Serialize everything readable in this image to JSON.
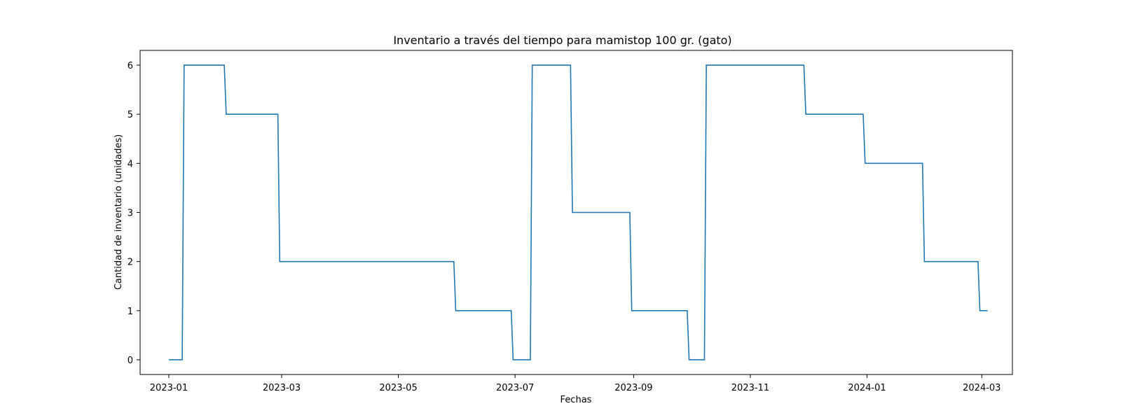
{
  "chart_data": {
    "type": "line",
    "title": "Inventario a través del tiempo para mamistop 100 gr. (gato)",
    "xlabel": "Fechas",
    "ylabel": "Cantidad de inventario (unidades)",
    "xlim": [
      "2022-12-17",
      "2024-03-17"
    ],
    "ylim": [
      -0.3,
      6.3
    ],
    "x_ticks": [
      "2023-01",
      "2023-03",
      "2023-05",
      "2023-07",
      "2023-09",
      "2023-11",
      "2024-01",
      "2024-03"
    ],
    "y_ticks": [
      0,
      1,
      2,
      3,
      4,
      5,
      6
    ],
    "grid": false,
    "color": "#1f77b4",
    "series": [
      {
        "x": [
          "2023-01-01",
          "2023-01-08",
          "2023-01-09",
          "2023-01-30",
          "2023-01-31",
          "2023-02-27",
          "2023-02-28",
          "2023-05-30",
          "2023-05-31",
          "2023-06-29",
          "2023-06-30",
          "2023-07-09",
          "2023-07-10",
          "2023-07-30",
          "2023-07-31",
          "2023-08-30",
          "2023-08-31",
          "2023-09-29",
          "2023-09-30",
          "2023-10-08",
          "2023-10-09",
          "2023-11-29",
          "2023-11-30",
          "2023-12-30",
          "2023-12-31",
          "2024-01-30",
          "2024-01-31",
          "2024-02-28",
          "2024-02-29",
          "2024-03-04"
        ],
        "values": [
          0,
          0,
          6,
          6,
          5,
          5,
          2,
          2,
          1,
          1,
          0,
          0,
          6,
          6,
          3,
          3,
          1,
          1,
          0,
          0,
          6,
          6,
          5,
          5,
          4,
          4,
          2,
          2,
          1,
          1
        ]
      }
    ]
  }
}
